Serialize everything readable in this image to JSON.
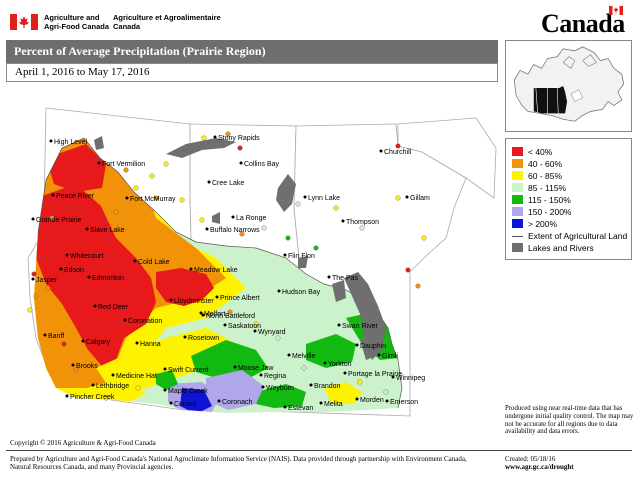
{
  "header": {
    "dept_en": "Agriculture and Agri-Food Canada",
    "dept_fr": "Agriculture et Agroalimentaire Canada",
    "wordmark": "Canada"
  },
  "map_title": "Percent of Average Precipitation (Prairie Region)",
  "date_range": "April 1, 2016 to May 17, 2016",
  "legend": {
    "items": [
      {
        "label": "< 40%",
        "color": "#e8191b"
      },
      {
        "label": "40 - 60%",
        "color": "#f29208"
      },
      {
        "label": "60 - 85%",
        "color": "#fdf200"
      },
      {
        "label": "85 - 115%",
        "color": "#ccf2cc"
      },
      {
        "label": "115 - 150%",
        "color": "#11b911"
      },
      {
        "label": "150 - 200%",
        "color": "#b0a6ea"
      },
      {
        "label": "> 200%",
        "color": "#0d14d4"
      }
    ],
    "agri_line": "Extent of Agricultural Land",
    "lakes": "Lakes and Rivers",
    "lakes_color": "#6f6f6f"
  },
  "cities": [
    {
      "name": "High Level"
    },
    {
      "name": "Fort Vermilion"
    },
    {
      "name": "Peace River"
    },
    {
      "name": "Fort McMurray"
    },
    {
      "name": "Grande Prairie"
    },
    {
      "name": "Slave Lake"
    },
    {
      "name": "Whitecourt"
    },
    {
      "name": "Edson"
    },
    {
      "name": "Jasper"
    },
    {
      "name": "Edmonton"
    },
    {
      "name": "Cold Lake"
    },
    {
      "name": "Lloydminster"
    },
    {
      "name": "Meadow Lake"
    },
    {
      "name": "Red Deer"
    },
    {
      "name": "Coronation"
    },
    {
      "name": "Banff"
    },
    {
      "name": "Calgary"
    },
    {
      "name": "Hanna"
    },
    {
      "name": "Brooks"
    },
    {
      "name": "Medicine Hat"
    },
    {
      "name": "Lethbridge"
    },
    {
      "name": "Pincher Creek"
    },
    {
      "name": "Maple Creek"
    },
    {
      "name": "Swift Current"
    },
    {
      "name": "Consul"
    },
    {
      "name": "Coronach"
    },
    {
      "name": "Moose Jaw"
    },
    {
      "name": "Regina"
    },
    {
      "name": "Weyburn"
    },
    {
      "name": "Estevan"
    },
    {
      "name": "Rosetown"
    },
    {
      "name": "Saskatoon"
    },
    {
      "name": "Wynyard"
    },
    {
      "name": "North Battleford"
    },
    {
      "name": "Prince Albert"
    },
    {
      "name": "Melfort"
    },
    {
      "name": "Hudson Bay"
    },
    {
      "name": "Melville"
    },
    {
      "name": "Yorkton"
    },
    {
      "name": "Brandon"
    },
    {
      "name": "Melita"
    },
    {
      "name": "Morden"
    },
    {
      "name": "Emerson"
    },
    {
      "name": "Winnipeg"
    },
    {
      "name": "Portage la Prairie"
    },
    {
      "name": "Dauphin"
    },
    {
      "name": "Swan River"
    },
    {
      "name": "Gimli"
    },
    {
      "name": "The Pas"
    },
    {
      "name": "Flin Flon"
    },
    {
      "name": "La Ronge"
    },
    {
      "name": "Buffalo Narrows"
    },
    {
      "name": "Cree Lake"
    },
    {
      "name": "Stony Rapids"
    },
    {
      "name": "Collins Bay"
    },
    {
      "name": "Lynn Lake"
    },
    {
      "name": "Thompson"
    },
    {
      "name": "Gillam"
    },
    {
      "name": "Churchill"
    }
  ],
  "disclaimer": "Produced using near real-time data that has undergone initial quality control. The map may not be accurate for all regions due to data availability and data errors.",
  "copyright": "Copyright © 2016 Agriculture & Agri-Food Canada",
  "prepared_by": "Prepared by Agriculture and Agri-Food Canada's National Agroclimate Information Service (NAIS). Data provided through partnership with Environment Canada, Natural Resources Canada, and many Provincial agencies.",
  "created": "Created: 05/18/16",
  "url": "www.agr.gc.ca/drought"
}
